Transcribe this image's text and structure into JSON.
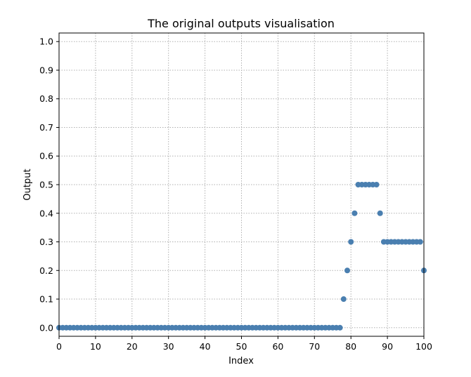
{
  "chart_data": {
    "type": "scatter",
    "title": "The original outputs visualisation",
    "xlabel": "Index",
    "ylabel": "Output",
    "xlim": [
      0,
      100
    ],
    "ylim": [
      -0.03,
      1.03
    ],
    "xticks": [
      0,
      10,
      20,
      30,
      40,
      50,
      60,
      70,
      80,
      90,
      100
    ],
    "xtick_labels": [
      "0",
      "10",
      "20",
      "30",
      "40",
      "50",
      "60",
      "70",
      "80",
      "90",
      "100"
    ],
    "yticks": [
      0.0,
      0.1,
      0.2,
      0.3,
      0.4,
      0.5,
      0.6,
      0.7,
      0.8,
      0.9,
      1.0
    ],
    "ytick_labels": [
      "0.0",
      "0.1",
      "0.2",
      "0.3",
      "0.4",
      "0.5",
      "0.6",
      "0.7",
      "0.8",
      "0.9",
      "1.0"
    ],
    "grid": true,
    "legend": "none",
    "marker_color": "#4a7fb0",
    "x": [
      0,
      1,
      2,
      3,
      4,
      5,
      6,
      7,
      8,
      9,
      10,
      11,
      12,
      13,
      14,
      15,
      16,
      17,
      18,
      19,
      20,
      21,
      22,
      23,
      24,
      25,
      26,
      27,
      28,
      29,
      30,
      31,
      32,
      33,
      34,
      35,
      36,
      37,
      38,
      39,
      40,
      41,
      42,
      43,
      44,
      45,
      46,
      47,
      48,
      49,
      50,
      51,
      52,
      53,
      54,
      55,
      56,
      57,
      58,
      59,
      60,
      61,
      62,
      63,
      64,
      65,
      66,
      67,
      68,
      69,
      70,
      71,
      72,
      73,
      74,
      75,
      76,
      77,
      78,
      79,
      80,
      81,
      82,
      83,
      84,
      85,
      86,
      87,
      88,
      89,
      90,
      91,
      92,
      93,
      94,
      95,
      96,
      97,
      98,
      99,
      100
    ],
    "y": [
      0,
      0,
      0,
      0,
      0,
      0,
      0,
      0,
      0,
      0,
      0,
      0,
      0,
      0,
      0,
      0,
      0,
      0,
      0,
      0,
      0,
      0,
      0,
      0,
      0,
      0,
      0,
      0,
      0,
      0,
      0,
      0,
      0,
      0,
      0,
      0,
      0,
      0,
      0,
      0,
      0,
      0,
      0,
      0,
      0,
      0,
      0,
      0,
      0,
      0,
      0,
      0,
      0,
      0,
      0,
      0,
      0,
      0,
      0,
      0,
      0,
      0,
      0,
      0,
      0,
      0,
      0,
      0,
      0,
      0,
      0,
      0,
      0,
      0,
      0,
      0,
      0,
      0,
      0.1,
      0.2,
      0.3,
      0.4,
      0.5,
      0.5,
      0.5,
      0.5,
      0.5,
      0.5,
      0.4,
      0.3,
      0.3,
      0.3,
      0.3,
      0.3,
      0.3,
      0.3,
      0.3,
      0.3,
      0.3,
      0.3,
      0.2
    ]
  }
}
